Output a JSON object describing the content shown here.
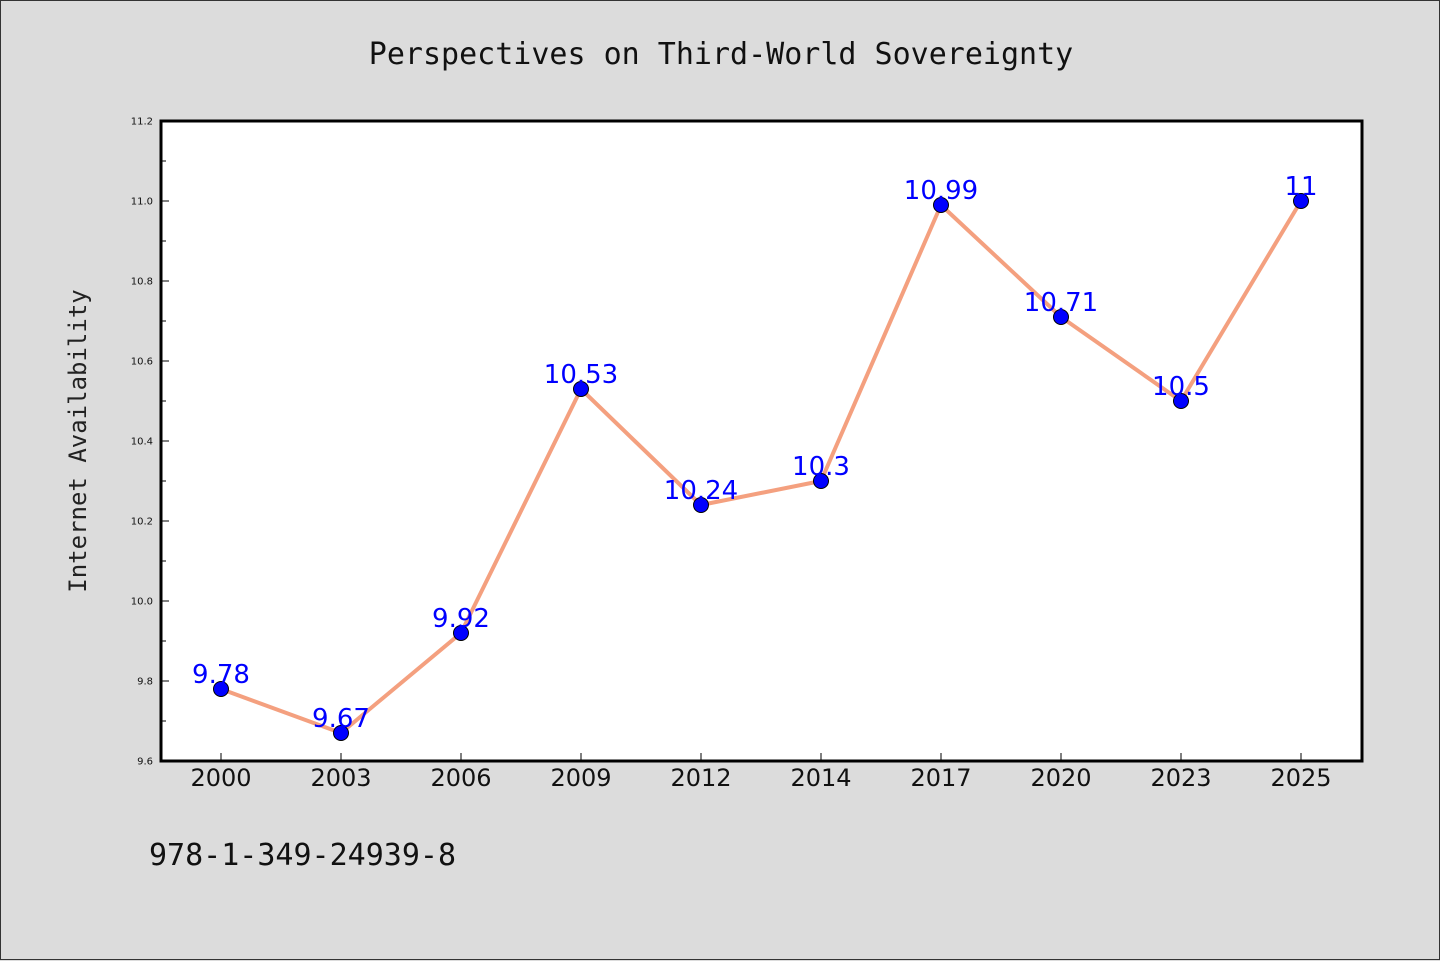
{
  "chart_data": {
    "type": "line",
    "title": "Perspectives on Third-World Sovereignty",
    "ylabel": "Internet Availability",
    "xlabel": "",
    "categories": [
      "2000",
      "2003",
      "2006",
      "2009",
      "2012",
      "2014",
      "2017",
      "2020",
      "2023",
      "2025"
    ],
    "series": [
      {
        "values": [
          9.78,
          9.67,
          9.92,
          10.53,
          10.24,
          10.3,
          10.99,
          10.71,
          10.5,
          11
        ],
        "data_labels": [
          "9.78",
          "9.67",
          "9.92",
          "10.53",
          "10.24",
          "10.3",
          "10.99",
          "10.71",
          "10.5",
          "11"
        ],
        "line_color": "#f4a07f",
        "marker_color": "#0000ff"
      }
    ],
    "ylim": [
      9.6,
      11.2
    ],
    "yticks": [
      "9.6",
      "9.8",
      "10.0",
      "10.2",
      "10.4",
      "10.6",
      "10.8",
      "11.0",
      "11.2"
    ],
    "grid": false,
    "legend": "none",
    "label_color": "#0000ff",
    "plot_background": "#ffffff",
    "figure_background": "#dcdcdc"
  },
  "footnote": "978-1-349-24939-8"
}
